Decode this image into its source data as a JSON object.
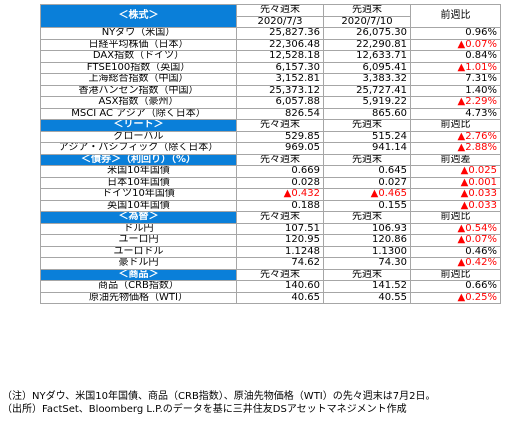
{
  "header": {
    "prev_prev_week": "先々週末",
    "prev_week": "先週末",
    "change": "前週比",
    "date1": "2020/7/3",
    "date2": "2020/7/10"
  },
  "sections": [
    {
      "title": "＜株式＞",
      "has_dates": true,
      "cols": [
        "先々週末",
        "先週末",
        "前週比"
      ],
      "rows": [
        {
          "label": "NYダウ（米国）",
          "v1": "25,827.36",
          "v2": "26,075.30",
          "chg": "0.96%",
          "neg": false
        },
        {
          "label": "日経平均株価（日本）",
          "v1": "22,306.48",
          "v2": "22,290.81",
          "chg": "▲0.07%",
          "neg": true
        },
        {
          "label": "DAX指数（ドイツ）",
          "v1": "12,528.18",
          "v2": "12,633.71",
          "chg": "0.84%",
          "neg": false
        },
        {
          "label": "FTSE100指数（英国）",
          "v1": "6,157.30",
          "v2": "6,095.41",
          "chg": "▲1.01%",
          "neg": true
        },
        {
          "label": "上海総合指数（中国）",
          "v1": "3,152.81",
          "v2": "3,383.32",
          "chg": "7.31%",
          "neg": false
        },
        {
          "label": "香港ハンセン指数（中国）",
          "v1": "25,373.12",
          "v2": "25,727.41",
          "chg": "1.40%",
          "neg": false
        },
        {
          "label": "ASX指数（豪州）",
          "v1": "6,057.88",
          "v2": "5,919.22",
          "chg": "▲2.29%",
          "neg": true
        },
        {
          "label": "MSCI AC アジア（除く日本）",
          "v1": "826.54",
          "v2": "865.60",
          "chg": "4.73%",
          "neg": false
        }
      ]
    },
    {
      "title": "＜リート＞",
      "has_dates": false,
      "cols": [
        "先々週末",
        "先週末",
        "前週比"
      ],
      "rows": [
        {
          "label": "グローバル",
          "v1": "529.85",
          "v2": "515.24",
          "chg": "▲2.76%",
          "neg": true
        },
        {
          "label": "アジア・パシフィック（除く日本）",
          "v1": "969.05",
          "v2": "941.14",
          "chg": "▲2.88%",
          "neg": true
        }
      ]
    },
    {
      "title": "＜債券＞（利回り）（%）",
      "has_dates": false,
      "cols": [
        "先々週末",
        "先週末",
        "前週差"
      ],
      "rows": [
        {
          "label": "米国10年国債",
          "v1": "0.669",
          "v2": "0.645",
          "chg": "▲0.025",
          "neg": true
        },
        {
          "label": "日本10年国債",
          "v1": "0.028",
          "v2": "0.027",
          "chg": "▲0.001",
          "neg": true
        },
        {
          "label": "ドイツ10年国債",
          "v1": "▲0.432",
          "v2": "▲0.465",
          "chg": "▲0.033",
          "neg": true,
          "neg_vals": true
        },
        {
          "label": "英国10年国債",
          "v1": "0.188",
          "v2": "0.155",
          "chg": "▲0.033",
          "neg": true
        }
      ]
    },
    {
      "title": "＜為替＞",
      "has_dates": false,
      "cols": [
        "先々週末",
        "先週末",
        "前週比"
      ],
      "rows": [
        {
          "label": "ドル円",
          "v1": "107.51",
          "v2": "106.93",
          "chg": "▲0.54%",
          "neg": true
        },
        {
          "label": "ユーロ円",
          "v1": "120.95",
          "v2": "120.86",
          "chg": "▲0.07%",
          "neg": true
        },
        {
          "label": "ユーロドル",
          "v1": "1.1248",
          "v2": "1.1300",
          "chg": "0.46%",
          "neg": false
        },
        {
          "label": "豪ドル円",
          "v1": "74.62",
          "v2": "74.30",
          "chg": "▲0.42%",
          "neg": true
        }
      ]
    },
    {
      "title": "＜商品＞",
      "has_dates": false,
      "cols": [
        "先々週末",
        "先週末",
        "前週比"
      ],
      "rows": [
        {
          "label": "商品（CRB指数）",
          "v1": "140.60",
          "v2": "141.52",
          "chg": "0.66%",
          "neg": false
        },
        {
          "label": "原油先物価格（WTI）",
          "v1": "40.65",
          "v2": "40.55",
          "chg": "▲0.25%",
          "neg": true
        }
      ]
    }
  ],
  "notes": [
    "（注）NYダウ、米国10年国債、商品（CRB指数）、原油先物価格（WTI）の先々週末は7月2日。",
    "（出所）FactSet、Bloomberg L.P.のデータを基に三井住友DSアセットマネジメント作成"
  ]
}
